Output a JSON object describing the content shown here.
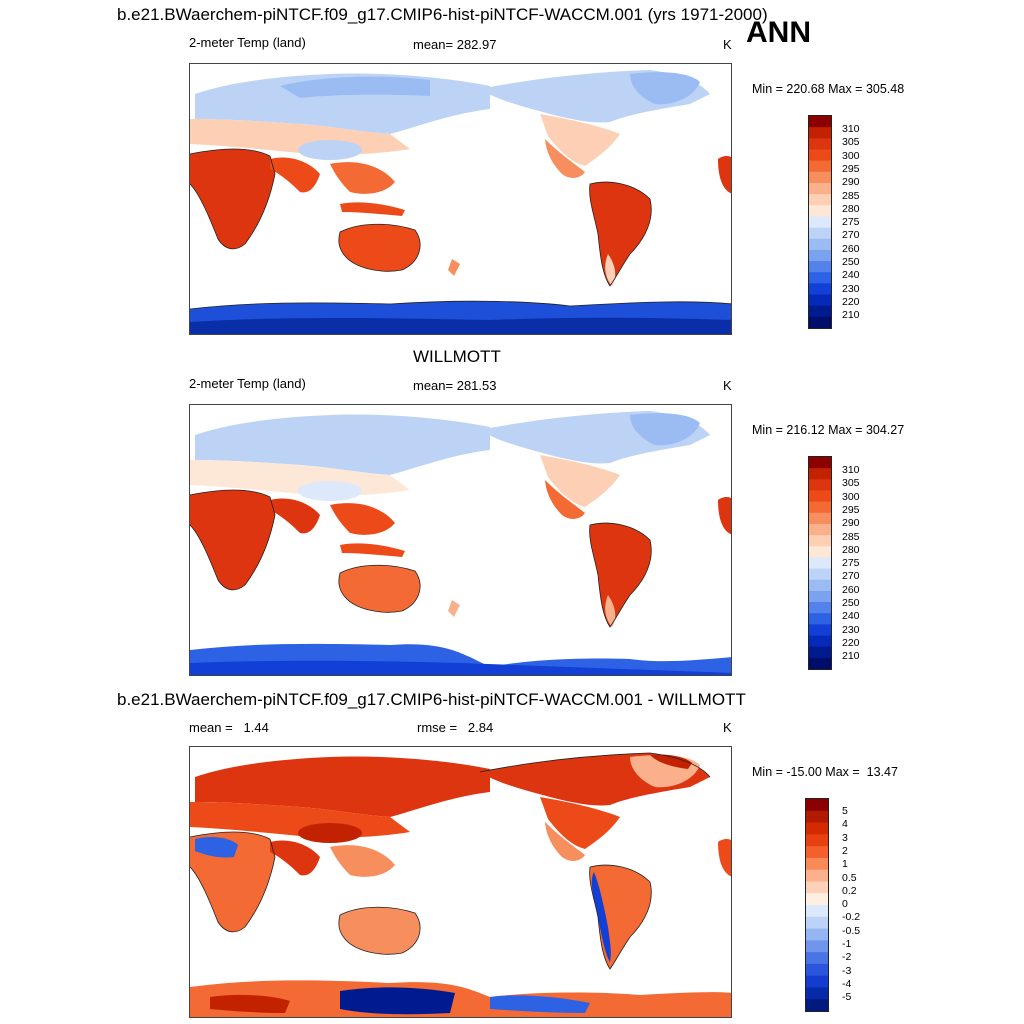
{
  "figure": {
    "title": "b.e21.BWaerchem-piNTCF.f09_g17.CMIP6-hist-piNTCF-WACCM.001 (yrs 1971-2000)",
    "season": "ANN"
  },
  "panels": [
    {
      "id": "model",
      "heading": "",
      "left_label": "2-meter Temp (land)",
      "center_label": "mean= 282.97",
      "right_label": "K",
      "minmax": "Min = 220.68 Max = 305.48",
      "colorbar_ticks": [
        "310",
        "305",
        "300",
        "295",
        "290",
        "285",
        "280",
        "275",
        "270",
        "260",
        "250",
        "240",
        "230",
        "220",
        "210"
      ]
    },
    {
      "id": "obs",
      "heading": "WILLMOTT",
      "left_label": "2-meter Temp (land)",
      "center_label": "mean= 281.53",
      "right_label": "K",
      "minmax": "Min = 216.12 Max = 304.27",
      "colorbar_ticks": [
        "310",
        "305",
        "300",
        "295",
        "290",
        "285",
        "280",
        "275",
        "270",
        "260",
        "250",
        "240",
        "230",
        "220",
        "210"
      ]
    },
    {
      "id": "diff",
      "heading": "b.e21.BWaerchem-piNTCF.f09_g17.CMIP6-hist-piNTCF-WACCM.001 - WILLMOTT",
      "left_label": "mean =   1.44",
      "center_label": "rmse =   2.84",
      "right_label": "K",
      "minmax": "Min = -15.00 Max =  13.47",
      "colorbar_ticks": [
        "5",
        "4",
        "3",
        "2",
        "1",
        "0.5",
        "0.2",
        "0",
        "-0.2",
        "-0.5",
        "-1",
        "-2",
        "-3",
        "-4",
        "-5"
      ]
    }
  ],
  "colormap": [
    "#8b0000",
    "#b01a00",
    "#d42a00",
    "#e84010",
    "#f4602c",
    "#f98a58",
    "#fdb08c",
    "#fdd2b8",
    "#fdf0e0",
    "#dce8fb",
    "#bcd2f7",
    "#95b6f2",
    "#6f96eb",
    "#4a74e4",
    "#2b55dc",
    "#143cce",
    "#062aa8",
    "#001a80"
  ],
  "colormap_temp": [
    "#8b0000",
    "#c22200",
    "#dd3510",
    "#ec4a18",
    "#f36a35",
    "#f78e5e",
    "#fbb08c",
    "#fdd0b6",
    "#fde8d8",
    "#dde9fb",
    "#bcd3f6",
    "#9bbcf2",
    "#7aa2ee",
    "#5383ea",
    "#2e62e4",
    "#123fd6",
    "#062ab8",
    "#001a90",
    "#000d6a"
  ]
}
